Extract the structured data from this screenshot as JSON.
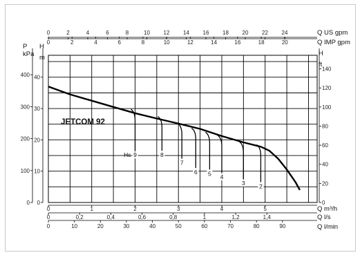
{
  "chart_data": {
    "type": "line",
    "model_label": "JETCOM 92",
    "axes": {
      "flow_m3h": {
        "title": "Q m³/h",
        "range": [
          0,
          6.2
        ],
        "ticks": [
          {
            "v": 0,
            "t": "0"
          },
          {
            "v": 1,
            "t": "1"
          },
          {
            "v": 2,
            "t": "2"
          },
          {
            "v": 3,
            "t": "3"
          },
          {
            "v": 4,
            "t": "4"
          },
          {
            "v": 5,
            "t": "5"
          }
        ]
      },
      "flow_ls": {
        "title": "Q l/s",
        "ticks": [
          {
            "v": 0,
            "t": "0"
          },
          {
            "v": 0.2,
            "t": "0,2"
          },
          {
            "v": 0.4,
            "t": "0,4"
          },
          {
            "v": 0.6,
            "t": "0,6"
          },
          {
            "v": 0.8,
            "t": "0,8"
          },
          {
            "v": 1,
            "t": "1"
          },
          {
            "v": 1.2,
            "t": "1,2"
          },
          {
            "v": 1.4,
            "t": "1,4"
          }
        ]
      },
      "flow_lmin": {
        "title": "Q l/min",
        "ticks": [
          {
            "v": 0,
            "t": "0"
          },
          {
            "v": 10,
            "t": "10"
          },
          {
            "v": 20,
            "t": "20"
          },
          {
            "v": 30,
            "t": "30"
          },
          {
            "v": 40,
            "t": "40"
          },
          {
            "v": 50,
            "t": "50"
          },
          {
            "v": 60,
            "t": "60"
          },
          {
            "v": 70,
            "t": "70"
          },
          {
            "v": 80,
            "t": "80"
          },
          {
            "v": 90,
            "t": "90"
          }
        ]
      },
      "flow_usgpm": {
        "title": "Q US gpm",
        "ticks": [
          {
            "v": 0,
            "t": "0"
          },
          {
            "v": 2,
            "t": "2"
          },
          {
            "v": 4,
            "t": "4"
          },
          {
            "v": 6,
            "t": "6"
          },
          {
            "v": 8,
            "t": "8"
          },
          {
            "v": 10,
            "t": "10"
          },
          {
            "v": 12,
            "t": "12"
          },
          {
            "v": 14,
            "t": "14"
          },
          {
            "v": 16,
            "t": "16"
          },
          {
            "v": 18,
            "t": "18"
          },
          {
            "v": 20,
            "t": "20"
          },
          {
            "v": 22,
            "t": "22"
          },
          {
            "v": 24,
            "t": "24"
          }
        ]
      },
      "flow_impgpm": {
        "title": "Q IMP gpm",
        "ticks": [
          {
            "v": 0,
            "t": "0"
          },
          {
            "v": 2,
            "t": "2"
          },
          {
            "v": 4,
            "t": "4"
          },
          {
            "v": 6,
            "t": "6"
          },
          {
            "v": 8,
            "t": "8"
          },
          {
            "v": 10,
            "t": "10"
          },
          {
            "v": 12,
            "t": "12"
          },
          {
            "v": 14,
            "t": "14"
          },
          {
            "v": 16,
            "t": "16"
          },
          {
            "v": 18,
            "t": "18"
          },
          {
            "v": 20,
            "t": "20"
          }
        ]
      },
      "head_m": {
        "title": "H",
        "unit": "m",
        "range": [
          0,
          47
        ],
        "ticks": [
          {
            "v": 0,
            "t": "0"
          },
          {
            "v": 10,
            "t": "10"
          },
          {
            "v": 20,
            "t": "20"
          },
          {
            "v": 30,
            "t": "30"
          },
          {
            "v": 40,
            "t": "40"
          }
        ]
      },
      "pressure_kpa": {
        "title": "P",
        "unit": "kPa",
        "ticks": [
          {
            "v": 0,
            "t": "0"
          },
          {
            "v": 100,
            "t": "100"
          },
          {
            "v": 200,
            "t": "200"
          },
          {
            "v": 300,
            "t": "300"
          },
          {
            "v": 400,
            "t": "400"
          }
        ]
      },
      "head_ft": {
        "title": "H",
        "unit": "ft",
        "ticks": [
          {
            "v": 0,
            "t": "0"
          },
          {
            "v": 20,
            "t": "20"
          },
          {
            "v": 40,
            "t": "40"
          },
          {
            "v": 60,
            "t": "60"
          },
          {
            "v": 80,
            "t": "80"
          },
          {
            "v": 100,
            "t": "100"
          },
          {
            "v": 120,
            "t": "120"
          },
          {
            "v": 140,
            "t": "140"
          }
        ]
      }
    },
    "grid": true,
    "main_curve": {
      "x": [
        0,
        0.5,
        1,
        1.5,
        2,
        2.5,
        3,
        3.5,
        4,
        4.5,
        4.9,
        5.1,
        5.3,
        5.5,
        5.7,
        5.8
      ],
      "y": [
        37,
        34.5,
        32.5,
        30.5,
        28.5,
        26.8,
        25.2,
        23.5,
        21.2,
        19.2,
        17.8,
        16.5,
        14,
        10.5,
        6.5,
        4
      ]
    },
    "suction_curves": [
      {
        "label": "9",
        "prefix": "Hs",
        "x": 2.0,
        "bend_top": 29.3,
        "bottom": 16.5
      },
      {
        "label": "8",
        "x": 2.62,
        "bend_top": 27.0,
        "bottom": 16.5
      },
      {
        "label": "7",
        "x": 3.08,
        "bend_top": 24.8,
        "bottom": 14.0
      },
      {
        "label": "6",
        "x": 3.4,
        "bend_top": 23.3,
        "bottom": 11.0
      },
      {
        "label": "5",
        "x": 3.72,
        "bend_top": 22.0,
        "bottom": 10.5
      },
      {
        "label": "4",
        "x": 4.0,
        "bend_top": 21.0,
        "bottom": 9.5
      },
      {
        "label": "3",
        "x": 4.5,
        "bend_top": 19.0,
        "bottom": 7.5
      },
      {
        "label": "2",
        "x": 4.9,
        "bend_top": 18.0,
        "bottom": 6.5
      }
    ]
  }
}
